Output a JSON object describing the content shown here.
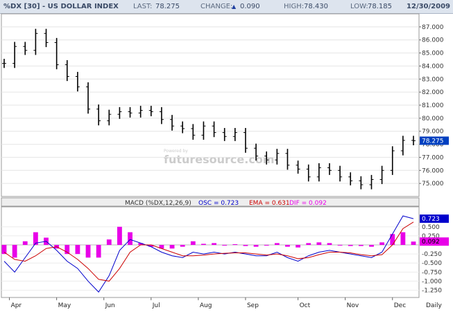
{
  "header": {
    "symbol": "%DX [30] - US DOLLAR INDEX",
    "last_label": "LAST:",
    "last": "78.275",
    "change_label": "CHANGE:",
    "change_arrow": "▲",
    "change": "0.090",
    "high_label": "HIGH:",
    "high": "78.430",
    "low_label": "LOW:",
    "low": "78.185",
    "date": "12/30/2009"
  },
  "watermark": {
    "small": "Powered by",
    "large": "futuresource.com"
  },
  "colors": {
    "osc": "#0000cc",
    "ema": "#cc0000",
    "dif": "#e800e8",
    "price": "#000000",
    "last_box": "#0040c0"
  },
  "chart_data": [
    {
      "type": "candlestick",
      "title": "%DX [30] - US DOLLAR INDEX",
      "x": [
        "2009-03-30",
        "2009-04-06",
        "2009-04-13",
        "2009-04-20",
        "2009-04-27",
        "2009-05-04",
        "2009-05-11",
        "2009-05-18",
        "2009-05-25",
        "2009-06-01",
        "2009-06-08",
        "2009-06-15",
        "2009-06-22",
        "2009-06-29",
        "2009-07-06",
        "2009-07-13",
        "2009-07-20",
        "2009-07-27",
        "2009-08-03",
        "2009-08-10",
        "2009-08-17",
        "2009-08-24",
        "2009-08-31",
        "2009-09-07",
        "2009-09-14",
        "2009-09-21",
        "2009-09-28",
        "2009-10-05",
        "2009-10-12",
        "2009-10-19",
        "2009-10-26",
        "2009-11-02",
        "2009-11-09",
        "2009-11-16",
        "2009-11-23",
        "2009-11-30",
        "2009-12-07",
        "2009-12-14",
        "2009-12-21",
        "2009-12-28"
      ],
      "close": [
        84.2,
        85.5,
        85.2,
        86.5,
        85.8,
        84.1,
        83.2,
        82.4,
        80.7,
        79.8,
        80.3,
        80.5,
        80.4,
        80.6,
        80.5,
        79.9,
        79.4,
        79.2,
        78.7,
        79.4,
        78.9,
        78.6,
        78.9,
        77.7,
        77.1,
        76.8,
        77.3,
        76.4,
        76.1,
        75.5,
        76.2,
        76.0,
        75.5,
        75.2,
        74.9,
        75.3,
        76.0,
        77.5,
        78.3,
        78.275
      ],
      "ylim": [
        74.0,
        88.0
      ],
      "yticks": [
        "87.000",
        "86.000",
        "85.000",
        "84.000",
        "83.000",
        "82.000",
        "81.000",
        "80.000",
        "79.000",
        "78.000",
        "77.000",
        "76.000",
        "75.000"
      ],
      "last_value_label": "78.275",
      "months": [
        "Apr",
        "May",
        "Jun",
        "Jul",
        "Aug",
        "Sep",
        "Oct",
        "Nov",
        "Dec",
        "Daily"
      ]
    },
    {
      "type": "line",
      "title": "MACD (%DX,12,26,9)",
      "legend": [
        {
          "name": "OSC",
          "value": "0.723"
        },
        {
          "name": "EMA",
          "value": "0.631"
        },
        {
          "name": "DIF",
          "value": "0.092"
        }
      ],
      "ylim": [
        -1.45,
        1.05
      ],
      "yticks": [
        "0.500",
        "0.250",
        "-0.250",
        "-0.500",
        "-0.750",
        "-1.000",
        "-1.250"
      ],
      "series": [
        {
          "name": "OSC",
          "values": [
            -0.45,
            -0.75,
            -0.35,
            0.05,
            0.1,
            -0.15,
            -0.45,
            -0.65,
            -1.0,
            -1.3,
            -0.85,
            -0.15,
            0.15,
            0.05,
            -0.05,
            -0.2,
            -0.3,
            -0.35,
            -0.2,
            -0.25,
            -0.2,
            -0.25,
            -0.2,
            -0.25,
            -0.3,
            -0.3,
            -0.2,
            -0.35,
            -0.45,
            -0.3,
            -0.2,
            -0.15,
            -0.2,
            -0.25,
            -0.3,
            -0.35,
            -0.2,
            0.3,
            0.8,
            0.723
          ]
        },
        {
          "name": "EMA",
          "values": [
            -0.2,
            -0.4,
            -0.45,
            -0.3,
            -0.1,
            -0.05,
            -0.2,
            -0.4,
            -0.65,
            -0.95,
            -1.0,
            -0.65,
            -0.2,
            0.0,
            0.0,
            -0.1,
            -0.2,
            -0.3,
            -0.3,
            -0.28,
            -0.25,
            -0.23,
            -0.22,
            -0.22,
            -0.25,
            -0.28,
            -0.25,
            -0.3,
            -0.38,
            -0.35,
            -0.27,
            -0.2,
            -0.2,
            -0.22,
            -0.27,
            -0.3,
            -0.27,
            0.0,
            0.45,
            0.631
          ]
        },
        {
          "name": "DIF",
          "values": [
            -0.25,
            -0.35,
            0.1,
            0.35,
            0.2,
            -0.1,
            -0.25,
            -0.25,
            -0.35,
            -0.35,
            0.15,
            0.5,
            0.35,
            0.05,
            -0.05,
            -0.1,
            -0.1,
            -0.05,
            0.1,
            0.03,
            0.05,
            -0.02,
            0.02,
            -0.03,
            -0.05,
            -0.02,
            0.05,
            -0.05,
            -0.07,
            0.05,
            0.07,
            0.05,
            0.0,
            -0.03,
            -0.03,
            -0.05,
            0.07,
            0.3,
            0.35,
            0.092
          ]
        }
      ],
      "last_value_labels": {
        "osc": "0.723",
        "dif": "0.092"
      }
    }
  ]
}
